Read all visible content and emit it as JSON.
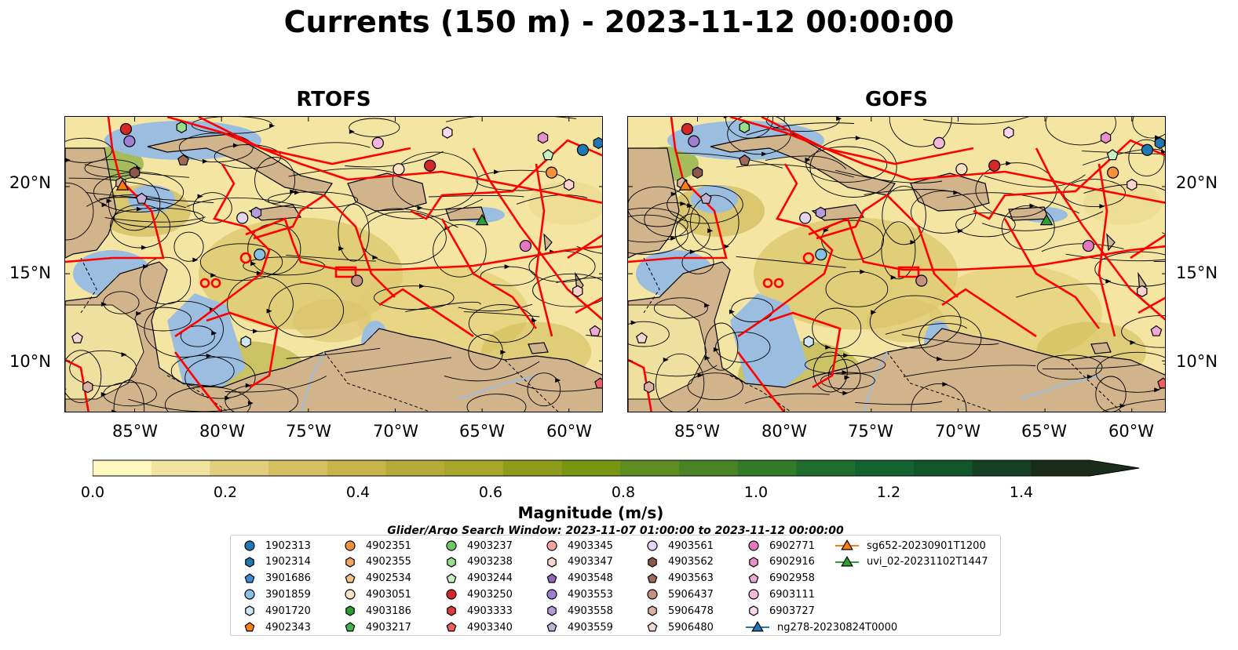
{
  "title": "Currents (150 m) - 2023-11-12 00:00:00",
  "panels": [
    {
      "title": "RTOFS"
    },
    {
      "title": "GOFS"
    }
  ],
  "axes": {
    "lat_labels": [
      "20°N",
      "15°N",
      "10°N"
    ],
    "lon_labels": [
      "85°W",
      "80°W",
      "75°W",
      "70°W",
      "65°W",
      "60°W"
    ],
    "lon_range": [
      -89,
      -58
    ],
    "lat_range": [
      7,
      24
    ]
  },
  "map_colors": {
    "land": "#d2b48c",
    "shallow_water": "#9bbde0",
    "boundaries": "#ff0000",
    "streamlines": "#000000"
  },
  "colorbar": {
    "label": "Magnitude (m/s)",
    "ticks": [
      "0.0",
      "0.2",
      "0.4",
      "0.6",
      "0.8",
      "1.0",
      "1.2",
      "1.4"
    ],
    "range": [
      0,
      1.5
    ],
    "extend": "max",
    "colors": [
      "#fff8c0",
      "#f1e3a0",
      "#e2cf7e",
      "#d5c061",
      "#c7b54c",
      "#b7ab37",
      "#a8a52b",
      "#8d9c1a",
      "#789611",
      "#5f8c1e",
      "#4a8325",
      "#347a2a",
      "#1f6e2d",
      "#136330",
      "#11552b",
      "#163f22",
      "#1a2d1c"
    ]
  },
  "search_window": "Glider/Argo Search Window: 2023-11-07 01:00:00 to 2023-11-12 00:00:00",
  "legend": [
    {
      "label": "1902313",
      "color": "#1f77b4",
      "marker": "circle"
    },
    {
      "label": "1902314",
      "color": "#1f77b4",
      "marker": "hexagon"
    },
    {
      "label": "3901686",
      "color": "#3a8ed8",
      "marker": "pentagon"
    },
    {
      "label": "3901859",
      "color": "#88c0e6",
      "marker": "circle"
    },
    {
      "label": "4901720",
      "color": "#cde6f7",
      "marker": "hexagon"
    },
    {
      "label": "4902343",
      "color": "#ff7f0e",
      "marker": "pentagon"
    },
    {
      "label": "4902351",
      "color": "#f5913a",
      "marker": "circle"
    },
    {
      "label": "4902355",
      "color": "#f5a460",
      "marker": "hexagon"
    },
    {
      "label": "4902534",
      "color": "#fbbf85",
      "marker": "pentagon"
    },
    {
      "label": "4903051",
      "color": "#fde3c4",
      "marker": "circle"
    },
    {
      "label": "4903186",
      "color": "#2ca02c",
      "marker": "hexagon"
    },
    {
      "label": "4903217",
      "color": "#3cb74a",
      "marker": "pentagon"
    },
    {
      "label": "4903237",
      "color": "#6cc665",
      "marker": "circle"
    },
    {
      "label": "4903238",
      "color": "#98df8a",
      "marker": "hexagon"
    },
    {
      "label": "4903244",
      "color": "#c8f0c0",
      "marker": "pentagon"
    },
    {
      "label": "4903250",
      "color": "#d62728",
      "marker": "circle"
    },
    {
      "label": "4903333",
      "color": "#dc3d3e",
      "marker": "hexagon"
    },
    {
      "label": "4903340",
      "color": "#f06060",
      "marker": "pentagon"
    },
    {
      "label": "4903345",
      "color": "#f4a3a0",
      "marker": "circle"
    },
    {
      "label": "4903347",
      "color": "#fbd3cf",
      "marker": "hexagon"
    },
    {
      "label": "4903548",
      "color": "#9467bd",
      "marker": "pentagon"
    },
    {
      "label": "4903553",
      "color": "#a07ed1",
      "marker": "circle"
    },
    {
      "label": "4903558",
      "color": "#b59ddc",
      "marker": "hexagon"
    },
    {
      "label": "4903559",
      "color": "#c5b0d5",
      "marker": "pentagon"
    },
    {
      "label": "4903561",
      "color": "#e3d5f0",
      "marker": "circle"
    },
    {
      "label": "4903562",
      "color": "#8c564b",
      "marker": "hexagon"
    },
    {
      "label": "4903563",
      "color": "#a06a5a",
      "marker": "pentagon"
    },
    {
      "label": "5906437",
      "color": "#c49080",
      "marker": "circle"
    },
    {
      "label": "5906478",
      "color": "#dbb2a4",
      "marker": "hexagon"
    },
    {
      "label": "5906480",
      "color": "#f3d8cf",
      "marker": "pentagon"
    },
    {
      "label": "6902771",
      "color": "#e377c2",
      "marker": "circle"
    },
    {
      "label": "6902916",
      "color": "#e890cc",
      "marker": "hexagon"
    },
    {
      "label": "6902958",
      "color": "#f0a8d8",
      "marker": "pentagon"
    },
    {
      "label": "6903111",
      "color": "#f5b6dc",
      "marker": "circle"
    },
    {
      "label": "6903727",
      "color": "#fcd8ee",
      "marker": "hexagon"
    },
    {
      "label": "ng278-20230824T0000",
      "color": "#1f77b4",
      "marker": "triangle"
    },
    {
      "label": "sg652-20230901T1200",
      "color": "#ff7f0e",
      "marker": "triangle"
    },
    {
      "label": "uvi_02-20231102T1447",
      "color": "#2ca02c",
      "marker": "triangle"
    }
  ],
  "platforms": [
    {
      "label": "4903250",
      "lon": -85.5,
      "lat": 23.3
    },
    {
      "label": "4903238",
      "lon": -82.3,
      "lat": 23.4
    },
    {
      "label": "4903553",
      "lon": -85.3,
      "lat": 22.6
    },
    {
      "label": "5906478",
      "lon": -85.8,
      "lat": 20.2
    },
    {
      "label": "4903562",
      "lon": -85.0,
      "lat": 20.8
    },
    {
      "label": "4903559",
      "lon": -84.6,
      "lat": 19.3
    },
    {
      "label": "4903563",
      "lon": -82.2,
      "lat": 21.5
    },
    {
      "label": "4903561",
      "lon": -78.8,
      "lat": 18.2
    },
    {
      "label": "4903558",
      "lon": -78.0,
      "lat": 18.5
    },
    {
      "label": "3901859",
      "lon": -77.8,
      "lat": 16.1
    },
    {
      "label": "4901720",
      "lon": -78.6,
      "lat": 11.1
    },
    {
      "label": "5906437",
      "lon": -72.2,
      "lat": 14.6
    },
    {
      "label": "6903111",
      "lon": -71.0,
      "lat": 22.5
    },
    {
      "label": "4903051",
      "lon": -69.8,
      "lat": 21.0
    },
    {
      "label": "4903250",
      "lon": -68.0,
      "lat": 21.2
    },
    {
      "label": "6903727",
      "lon": -67.0,
      "lat": 23.1
    },
    {
      "label": "6902916",
      "lon": -61.5,
      "lat": 22.8
    },
    {
      "label": "4903244",
      "lon": -61.2,
      "lat": 21.8
    },
    {
      "label": "4902351",
      "lon": -61.0,
      "lat": 20.8
    },
    {
      "label": "4903347",
      "lon": -60.0,
      "lat": 20.1
    },
    {
      "label": "1902313",
      "lon": -59.2,
      "lat": 22.1
    },
    {
      "label": "1902314",
      "lon": -58.3,
      "lat": 22.5
    },
    {
      "label": "6902771",
      "lon": -62.5,
      "lat": 16.6
    },
    {
      "label": "4903347",
      "lon": -59.5,
      "lat": 14.0
    },
    {
      "label": "6902958",
      "lon": -58.5,
      "lat": 11.7
    },
    {
      "label": "4903340",
      "lon": -58.2,
      "lat": 8.7
    },
    {
      "label": "5906480",
      "lon": -88.3,
      "lat": 11.3
    },
    {
      "label": "5906478",
      "lon": -87.7,
      "lat": 8.5
    },
    {
      "label": "sg652-20230901T1200",
      "lon": -85.7,
      "lat": 20.0
    },
    {
      "label": "uvi_02-20231102T1447",
      "lon": -65.0,
      "lat": 18.0
    }
  ]
}
